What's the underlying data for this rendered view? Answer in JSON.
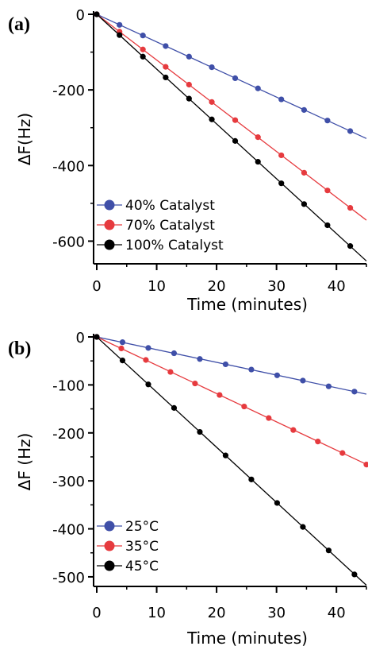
{
  "chart_data": [
    {
      "panel_label": "(a)",
      "type": "line",
      "xlabel": "Time (minutes)",
      "ylabel": "ΔF(Hz)",
      "xlim": [
        0,
        45
      ],
      "ylim": [
        -660,
        0
      ],
      "x_ticks": [
        0,
        10,
        20,
        30,
        40
      ],
      "x_tick_labels": [
        "0",
        "10",
        "20",
        "30",
        "40"
      ],
      "y_ticks": [
        0,
        -200,
        -400,
        -600
      ],
      "y_tick_labels": [
        "0",
        "-200",
        "-400",
        "-600"
      ],
      "legend_position": "bottom-left",
      "series": [
        {
          "name": "40% Catalyst",
          "color": "#3f4fa8",
          "slope": -7.3,
          "x": [
            0,
            3.8,
            7.7,
            11.5,
            15.4,
            19.2,
            23.1,
            26.9,
            30.8,
            34.6,
            38.5,
            42.3
          ],
          "y": [
            0,
            -28,
            -56,
            -84,
            -112,
            -140,
            -169,
            -196,
            -225,
            -253,
            -281,
            -309
          ]
        },
        {
          "name": "70% Catalyst",
          "color": "#e63a3e",
          "slope": -12.1,
          "x": [
            0,
            3.8,
            7.7,
            11.5,
            15.4,
            19.2,
            23.1,
            26.9,
            30.8,
            34.6,
            38.5,
            42.3
          ],
          "y": [
            0,
            -46,
            -93,
            -139,
            -186,
            -232,
            -280,
            -325,
            -373,
            -419,
            -466,
            -512
          ]
        },
        {
          "name": "100% Catalyst",
          "color": "#000000",
          "slope": -14.5,
          "x": [
            0,
            3.8,
            7.7,
            11.5,
            15.4,
            19.2,
            23.1,
            26.9,
            30.8,
            34.6,
            38.5,
            42.3
          ],
          "y": [
            0,
            -55,
            -112,
            -167,
            -223,
            -278,
            -335,
            -390,
            -447,
            -502,
            -558,
            -613
          ]
        }
      ]
    },
    {
      "panel_label": "(b)",
      "type": "line",
      "xlabel": "Time (minutes)",
      "ylabel": "ΔF (Hz)",
      "xlim": [
        0,
        45
      ],
      "ylim": [
        -520,
        0
      ],
      "x_ticks": [
        0,
        10,
        20,
        30,
        40
      ],
      "x_tick_labels": [
        "0",
        "10",
        "20",
        "30",
        "40"
      ],
      "y_ticks": [
        0,
        -100,
        -200,
        -300,
        -400,
        -500
      ],
      "y_tick_labels": [
        "0",
        "-100",
        "-200",
        "-300",
        "-400",
        "-500"
      ],
      "legend_position": "bottom-left",
      "series": [
        {
          "name": "25°C",
          "color": "#3f4fa8",
          "slope": -2.65,
          "x": [
            0,
            4.3,
            8.6,
            12.9,
            17.2,
            21.5,
            25.8,
            30.1,
            34.4,
            38.7,
            43
          ],
          "y": [
            0,
            -11,
            -23,
            -34,
            -46,
            -57,
            -68,
            -80,
            -91,
            -103,
            -114
          ]
        },
        {
          "name": "35°C",
          "color": "#e63a3e",
          "slope": -5.9,
          "x": [
            0,
            4.1,
            8.2,
            12.3,
            16.4,
            20.5,
            24.6,
            28.7,
            32.8,
            36.9,
            41,
            45
          ],
          "y": [
            0,
            -24,
            -48,
            -73,
            -97,
            -121,
            -145,
            -169,
            -194,
            -218,
            -242,
            -266
          ]
        },
        {
          "name": "45°C",
          "color": "#000000",
          "slope": -11.5,
          "x": [
            0,
            4.3,
            8.6,
            12.9,
            17.2,
            21.5,
            25.8,
            30.1,
            34.4,
            38.7,
            43
          ],
          "y": [
            0,
            -49,
            -99,
            -148,
            -198,
            -247,
            -297,
            -346,
            -396,
            -445,
            -495
          ]
        }
      ]
    }
  ]
}
